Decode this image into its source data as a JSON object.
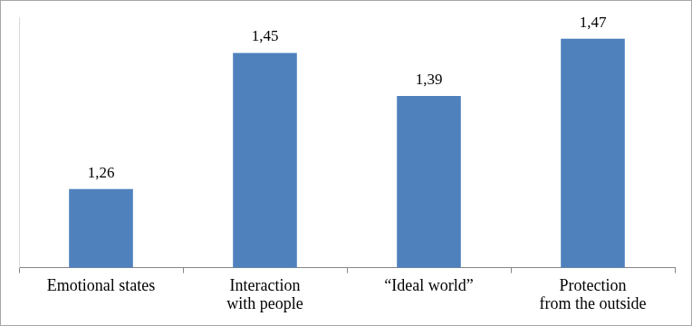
{
  "chart_data": {
    "type": "bar",
    "categories": [
      "Emotional states",
      "Interaction with people",
      "“Ideal world”",
      "Protection from the outside"
    ],
    "values": [
      1.26,
      1.45,
      1.39,
      1.47
    ],
    "value_labels": [
      "1,26",
      "1,45",
      "1,39",
      "1,47"
    ],
    "color": "#4f81bd",
    "ylim": [
      1.15,
      1.5
    ],
    "grid": false,
    "data_labels": true,
    "tick_labels": "x"
  }
}
